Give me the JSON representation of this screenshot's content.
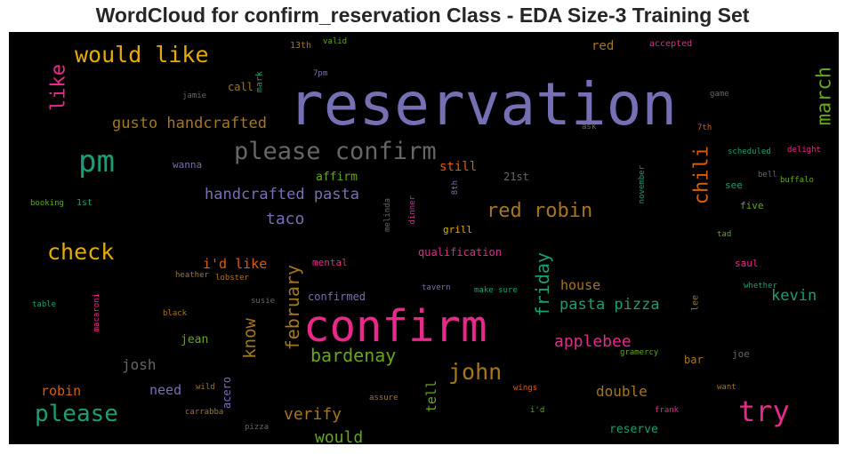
{
  "chart_data": {
    "type": "wordcloud",
    "title": "WordCloud for confirm_reservation Class - EDA Size-3 Training Set",
    "background": "#000000",
    "words": [
      {
        "text": "reservation",
        "weight": 100,
        "color": "#7570b3",
        "orientation": "horizontal"
      },
      {
        "text": "confirm",
        "weight": 74,
        "color": "#e7298a",
        "orientation": "horizontal"
      },
      {
        "text": "pm",
        "weight": 50,
        "color": "#1b9e77",
        "orientation": "horizontal"
      },
      {
        "text": "try",
        "weight": 46,
        "color": "#e7298a",
        "orientation": "horizontal"
      },
      {
        "text": "please confirm",
        "weight": 39,
        "color": "#666666",
        "orientation": "horizontal"
      },
      {
        "text": "please",
        "weight": 37,
        "color": "#1b9e77",
        "orientation": "horizontal"
      },
      {
        "text": "would like",
        "weight": 36,
        "color": "#e6ab02",
        "orientation": "horizontal"
      },
      {
        "text": "john",
        "weight": 35,
        "color": "#a6761d",
        "orientation": "horizontal"
      },
      {
        "text": "check",
        "weight": 35,
        "color": "#e6ab02",
        "orientation": "horizontal"
      },
      {
        "text": "red robin",
        "weight": 31,
        "color": "#a6761d",
        "orientation": "horizontal"
      },
      {
        "text": "like",
        "weight": 30,
        "color": "#e7298a",
        "orientation": "vertical"
      },
      {
        "text": "march",
        "weight": 30,
        "color": "#66a61e",
        "orientation": "vertical"
      },
      {
        "text": "chili",
        "weight": 30,
        "color": "#d95f02",
        "orientation": "vertical"
      },
      {
        "text": "bardenay",
        "weight": 28,
        "color": "#66a61e",
        "orientation": "horizontal"
      },
      {
        "text": "friday",
        "weight": 28,
        "color": "#1b9e77",
        "orientation": "vertical"
      },
      {
        "text": "february",
        "weight": 27,
        "color": "#a6761d",
        "orientation": "vertical"
      },
      {
        "text": "know",
        "weight": 26,
        "color": "#a6761d",
        "orientation": "vertical"
      },
      {
        "text": "applebee",
        "weight": 25,
        "color": "#e7298a",
        "orientation": "horizontal"
      },
      {
        "text": "would",
        "weight": 24,
        "color": "#66a61e",
        "orientation": "horizontal"
      },
      {
        "text": "verify",
        "weight": 24,
        "color": "#a6761d",
        "orientation": "horizontal"
      },
      {
        "text": "taco",
        "weight": 24,
        "color": "#7570b3",
        "orientation": "horizontal"
      },
      {
        "text": "kevin",
        "weight": 23,
        "color": "#1b9e77",
        "orientation": "horizontal"
      },
      {
        "text": "gusto handcrafted",
        "weight": 22,
        "color": "#a6761d",
        "orientation": "horizontal"
      },
      {
        "text": "handcrafted pasta",
        "weight": 22,
        "color": "#7570b3",
        "orientation": "horizontal"
      },
      {
        "text": "pasta pizza",
        "weight": 22,
        "color": "#1b9e77",
        "orientation": "horizontal"
      },
      {
        "text": "josh",
        "weight": 21,
        "color": "#666666",
        "orientation": "horizontal"
      },
      {
        "text": "double",
        "weight": 21,
        "color": "#a6761d",
        "orientation": "horizontal"
      },
      {
        "text": "house",
        "weight": 20,
        "color": "#a6761d",
        "orientation": "horizontal"
      },
      {
        "text": "i'd like",
        "weight": 20,
        "color": "#d95f02",
        "orientation": "horizontal"
      },
      {
        "text": "tell",
        "weight": 19,
        "color": "#66a61e",
        "orientation": "vertical"
      },
      {
        "text": "robin",
        "weight": 19,
        "color": "#d95f02",
        "orientation": "horizontal"
      },
      {
        "text": "need",
        "weight": 19,
        "color": "#7570b3",
        "orientation": "horizontal"
      },
      {
        "text": "still",
        "weight": 18,
        "color": "#d95f02",
        "orientation": "horizontal"
      },
      {
        "text": "red",
        "weight": 18,
        "color": "#a6761d",
        "orientation": "horizontal"
      },
      {
        "text": "reserve",
        "weight": 17,
        "color": "#1b9e77",
        "orientation": "horizontal"
      },
      {
        "text": "jean",
        "weight": 16,
        "color": "#66a61e",
        "orientation": "horizontal"
      },
      {
        "text": "affirm",
        "weight": 16,
        "color": "#66a61e",
        "orientation": "horizontal"
      },
      {
        "text": "qualification",
        "weight": 15,
        "color": "#e7298a",
        "orientation": "horizontal"
      },
      {
        "text": "call",
        "weight": 15,
        "color": "#a6761d",
        "orientation": "horizontal"
      },
      {
        "text": "21st",
        "weight": 15,
        "color": "#666666",
        "orientation": "horizontal"
      },
      {
        "text": "confirmed",
        "weight": 14,
        "color": "#7570b3",
        "orientation": "horizontal"
      },
      {
        "text": "bar",
        "weight": 14,
        "color": "#a6761d",
        "orientation": "horizontal"
      },
      {
        "text": "acero",
        "weight": 14,
        "color": "#7570b3",
        "orientation": "vertical"
      },
      {
        "text": "five",
        "weight": 13,
        "color": "#66a61e",
        "orientation": "horizontal"
      },
      {
        "text": "see",
        "weight": 13,
        "color": "#1b9e77",
        "orientation": "horizontal"
      },
      {
        "text": "wanna",
        "weight": 13,
        "color": "#7570b3",
        "orientation": "horizontal"
      },
      {
        "text": "mental",
        "weight": 13,
        "color": "#e7298a",
        "orientation": "horizontal"
      },
      {
        "text": "joe",
        "weight": 13,
        "color": "#666666",
        "orientation": "horizontal"
      },
      {
        "text": "grill",
        "weight": 13,
        "color": "#e6ab02",
        "orientation": "horizontal"
      },
      {
        "text": "saul",
        "weight": 13,
        "color": "#e7298a",
        "orientation": "horizontal"
      },
      {
        "text": "accepted",
        "weight": 12,
        "color": "#e7298a",
        "orientation": "horizontal"
      },
      {
        "text": "1st",
        "weight": 12,
        "color": "#1b9e77",
        "orientation": "horizontal"
      },
      {
        "text": "mark",
        "weight": 11,
        "color": "#1b9e77",
        "orientation": "vertical"
      },
      {
        "text": "lee",
        "weight": 11,
        "color": "#a6761d",
        "orientation": "vertical"
      },
      {
        "text": "13th",
        "weight": 11,
        "color": "#a6761d",
        "orientation": "horizontal"
      },
      {
        "text": "black",
        "weight": 10,
        "color": "#a6761d",
        "orientation": "horizontal"
      },
      {
        "text": "tavern",
        "weight": 10,
        "color": "#7570b3",
        "orientation": "horizontal"
      },
      {
        "text": "make sure",
        "weight": 10,
        "color": "#1b9e77",
        "orientation": "horizontal"
      },
      {
        "text": "susie",
        "weight": 10,
        "color": "#666666",
        "orientation": "horizontal"
      },
      {
        "text": "lobster",
        "weight": 10,
        "color": "#a6761d",
        "orientation": "horizontal"
      },
      {
        "text": "heather",
        "weight": 10,
        "color": "#a6761d",
        "orientation": "horizontal"
      },
      {
        "text": "wings",
        "weight": 10,
        "color": "#d95f02",
        "orientation": "horizontal"
      },
      {
        "text": "assure",
        "weight": 10,
        "color": "#a6761d",
        "orientation": "horizontal"
      },
      {
        "text": "i'd",
        "weight": 10,
        "color": "#66a61e",
        "orientation": "horizontal"
      },
      {
        "text": "frank",
        "weight": 10,
        "color": "#e7298a",
        "orientation": "horizontal"
      },
      {
        "text": "want",
        "weight": 10,
        "color": "#a6761d",
        "orientation": "horizontal"
      },
      {
        "text": "wild",
        "weight": 10,
        "color": "#a6761d",
        "orientation": "horizontal"
      },
      {
        "text": "carrabba",
        "weight": 10,
        "color": "#a6761d",
        "orientation": "horizontal"
      },
      {
        "text": "pizza",
        "weight": 10,
        "color": "#666666",
        "orientation": "horizontal"
      },
      {
        "text": "table",
        "weight": 10,
        "color": "#1b9e77",
        "orientation": "horizontal"
      },
      {
        "text": "macaroni",
        "weight": 10,
        "color": "#e7298a",
        "orientation": "vertical"
      },
      {
        "text": "booking",
        "weight": 10,
        "color": "#66a61e",
        "orientation": "horizontal"
      },
      {
        "text": "valid",
        "weight": 10,
        "color": "#66a61e",
        "orientation": "horizontal"
      },
      {
        "text": "7pm",
        "weight": 10,
        "color": "#7570b3",
        "orientation": "horizontal"
      },
      {
        "text": "jamie",
        "weight": 10,
        "color": "#666666",
        "orientation": "horizontal"
      },
      {
        "text": "ask",
        "weight": 10,
        "color": "#666666",
        "orientation": "horizontal"
      },
      {
        "text": "game",
        "weight": 10,
        "color": "#666666",
        "orientation": "horizontal"
      },
      {
        "text": "7th",
        "weight": 10,
        "color": "#d95f02",
        "orientation": "horizontal"
      },
      {
        "text": "scheduled",
        "weight": 10,
        "color": "#1b9e77",
        "orientation": "horizontal"
      },
      {
        "text": "delight",
        "weight": 10,
        "color": "#e7298a",
        "orientation": "horizontal"
      },
      {
        "text": "bell",
        "weight": 10,
        "color": "#666666",
        "orientation": "horizontal"
      },
      {
        "text": "buffalo",
        "weight": 10,
        "color": "#66a61e",
        "orientation": "horizontal"
      },
      {
        "text": "november",
        "weight": 10,
        "color": "#1b9e77",
        "orientation": "vertical"
      },
      {
        "text": "tad",
        "weight": 10,
        "color": "#66a61e",
        "orientation": "horizontal"
      },
      {
        "text": "whether",
        "weight": 10,
        "color": "#1b9e77",
        "orientation": "horizontal"
      },
      {
        "text": "gramercy",
        "weight": 10,
        "color": "#66a61e",
        "orientation": "horizontal"
      },
      {
        "text": "dinner",
        "weight": 10,
        "color": "#e7298a",
        "orientation": "vertical"
      },
      {
        "text": "8th",
        "weight": 10,
        "color": "#7570b3",
        "orientation": "vertical"
      },
      {
        "text": "melinda",
        "weight": 10,
        "color": "#666666",
        "orientation": "vertical"
      }
    ]
  }
}
